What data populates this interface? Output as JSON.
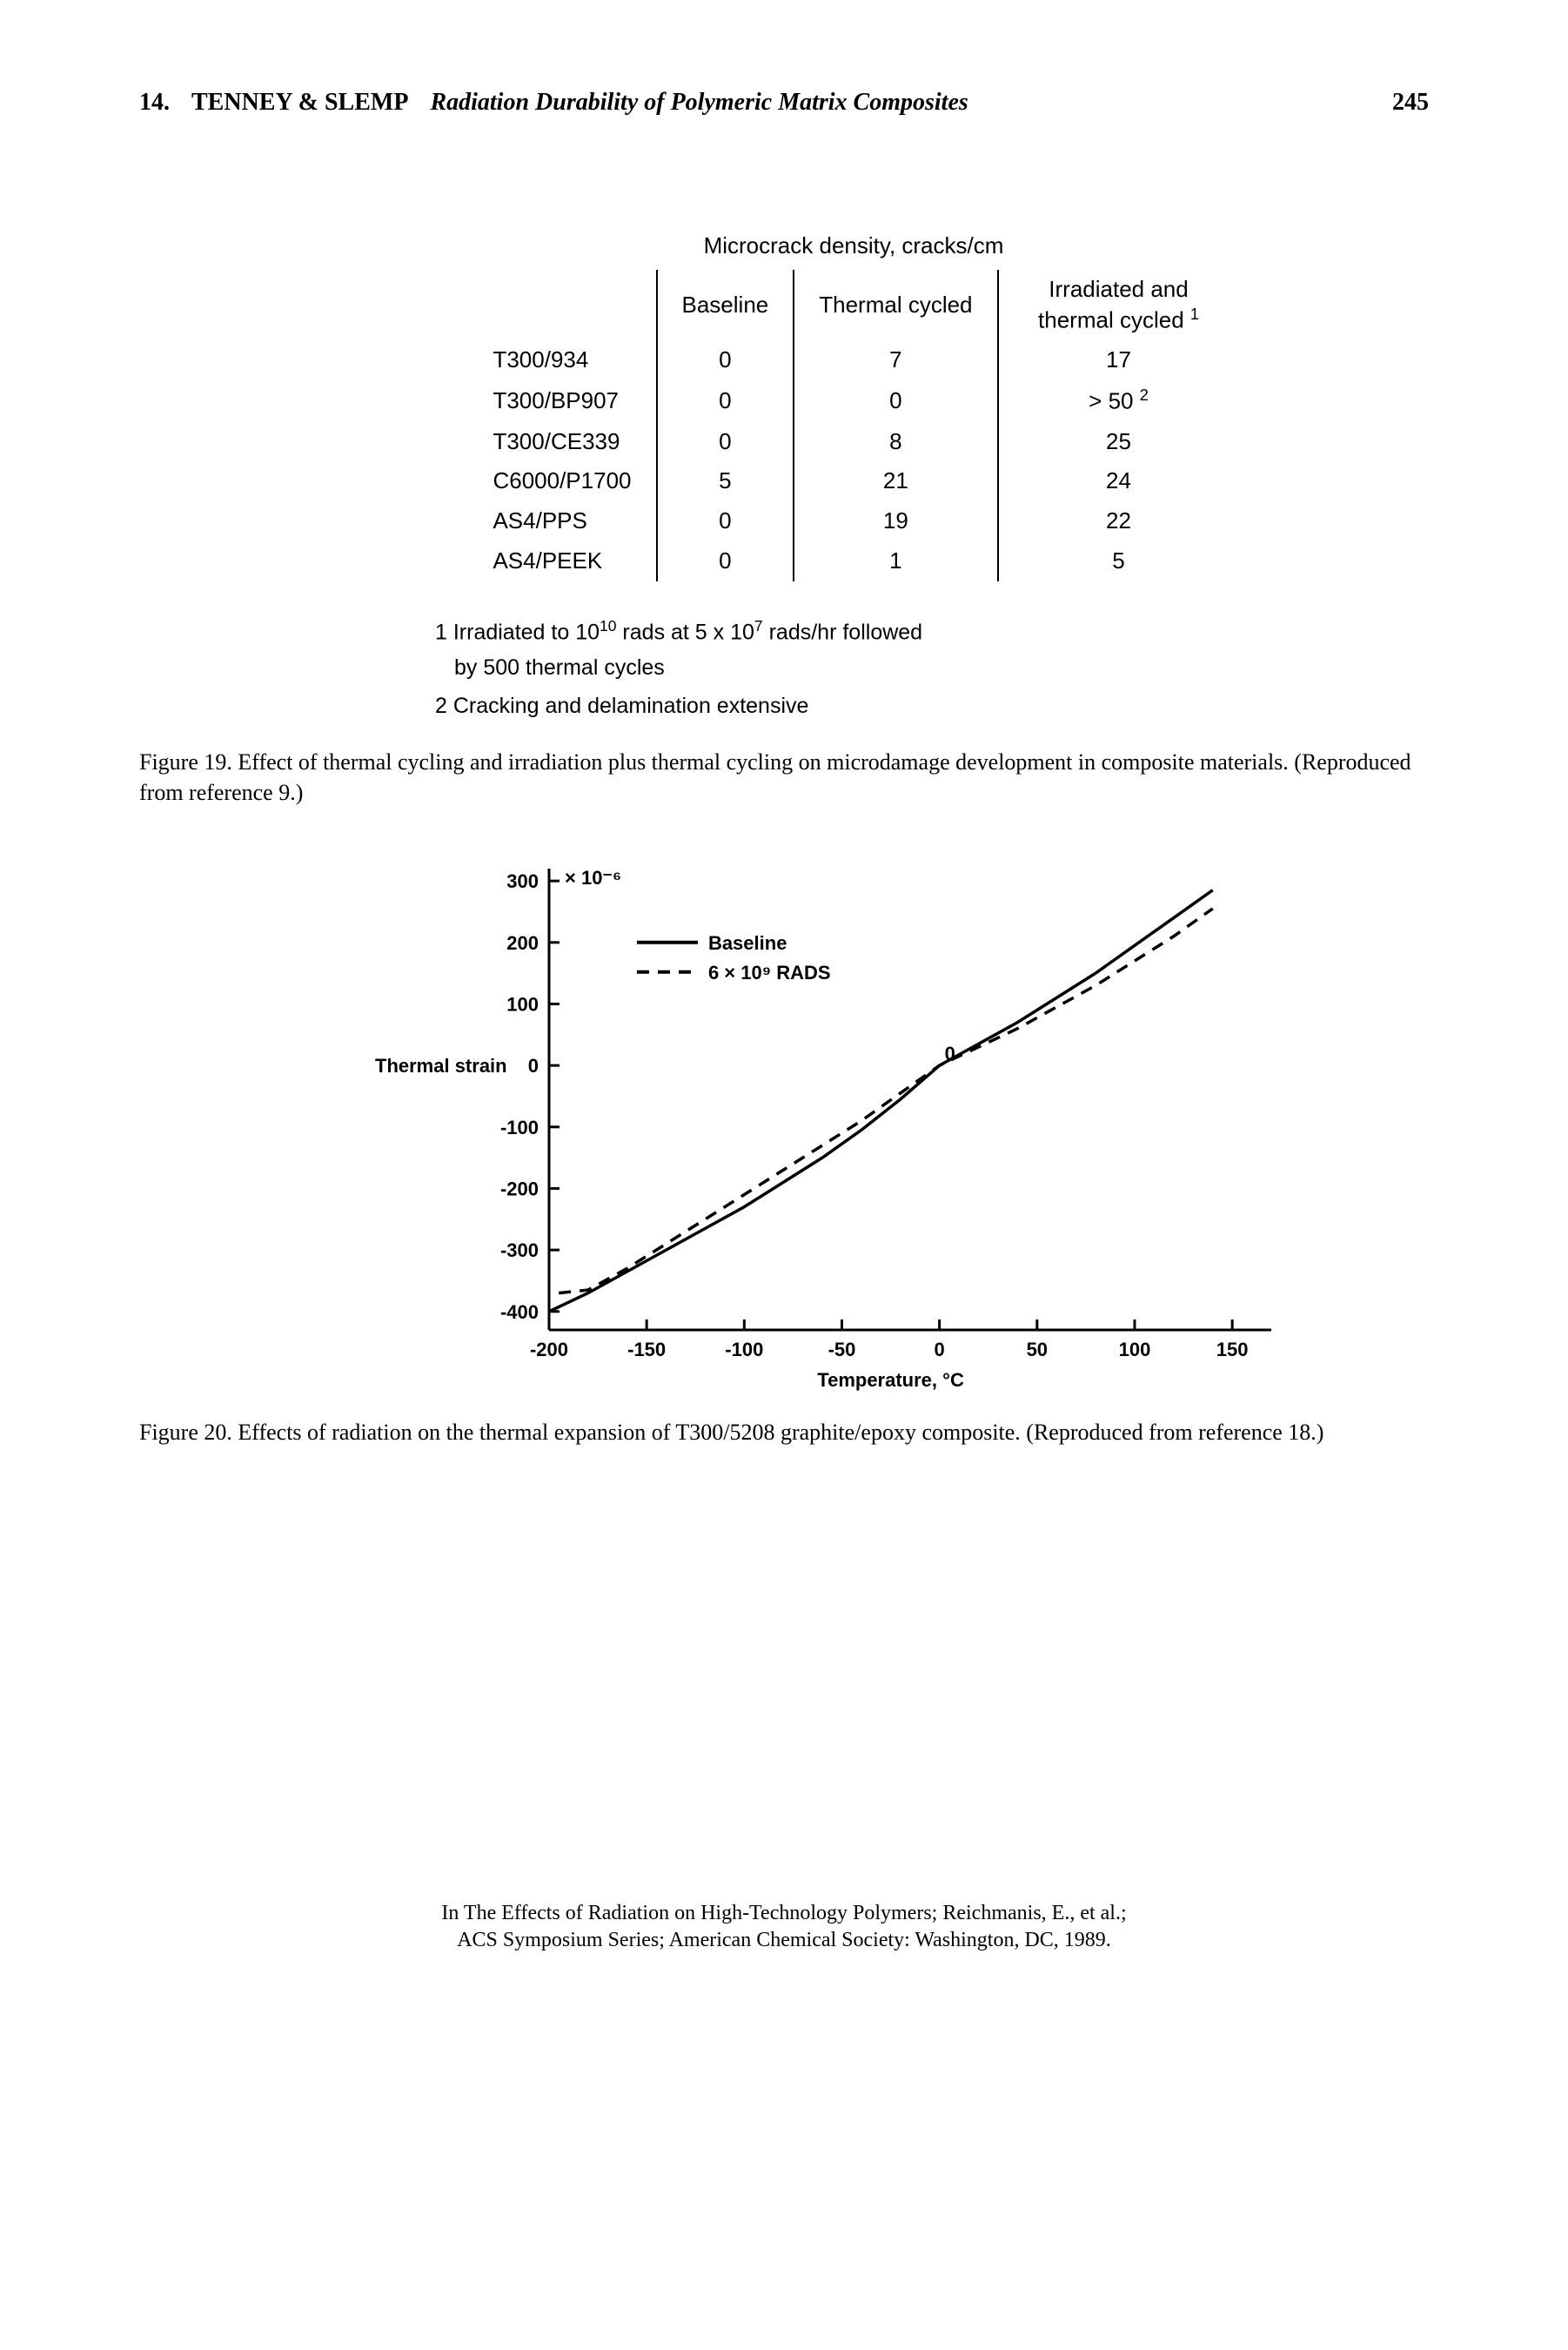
{
  "header": {
    "chapter_num": "14.",
    "authors": "TENNEY & SLEMP",
    "title": "Radiation Durability of Polymeric Matrix Composites",
    "page": "245"
  },
  "table": {
    "title": "Microcrack density, cracks/cm",
    "columns": [
      "",
      "Baseline",
      "Thermal cycled",
      "Irradiated and thermal cycled"
    ],
    "col3_super": "1",
    "rows": [
      {
        "material": "T300/934",
        "baseline": "0",
        "thermal": "7",
        "irradiated": "17",
        "sup": ""
      },
      {
        "material": "T300/BP907",
        "baseline": "0",
        "thermal": "0",
        "irradiated": "> 50",
        "sup": "2"
      },
      {
        "material": "T300/CE339",
        "baseline": "0",
        "thermal": "8",
        "irradiated": "25",
        "sup": ""
      },
      {
        "material": "C6000/P1700",
        "baseline": "5",
        "thermal": "21",
        "irradiated": "24",
        "sup": ""
      },
      {
        "material": "AS4/PPS",
        "baseline": "0",
        "thermal": "19",
        "irradiated": "22",
        "sup": ""
      },
      {
        "material": "AS4/PEEK",
        "baseline": "0",
        "thermal": "1",
        "irradiated": "5",
        "sup": ""
      }
    ],
    "footnote1_prefix": "1 Irradiated to 10",
    "footnote1_sup1": "10",
    "footnote1_mid": " rads at 5 x 10",
    "footnote1_sup2": "7",
    "footnote1_suffix": " rads/hr followed",
    "footnote1_line2": "by 500 thermal cycles",
    "footnote2": "2 Cracking and delamination extensive"
  },
  "caption19": "Figure 19. Effect of thermal cycling and irradiation plus thermal cycling on microdamage development in composite materials. (Reproduced from reference 9.)",
  "chart": {
    "type": "line",
    "y_label": "Thermal strain",
    "y_exponent": "× 10⁻⁶",
    "x_label": "Temperature, °C",
    "x_ticks": [
      "-200",
      "-150",
      "-100",
      "-50",
      "0",
      "50",
      "100",
      "150"
    ],
    "y_ticks": [
      "-400",
      "-300",
      "-200",
      "-100",
      "0",
      "100",
      "200",
      "300"
    ],
    "xlim": [
      -200,
      170
    ],
    "ylim": [
      -430,
      320
    ],
    "legend": {
      "items": [
        {
          "label": "Baseline",
          "dash": "solid"
        },
        {
          "label": "6 × 10⁹ RADS",
          "dash": "dashed"
        }
      ]
    },
    "series": {
      "baseline": [
        {
          "x": -200,
          "y": -400
        },
        {
          "x": -180,
          "y": -370
        },
        {
          "x": -160,
          "y": -335
        },
        {
          "x": -140,
          "y": -300
        },
        {
          "x": -120,
          "y": -265
        },
        {
          "x": -100,
          "y": -230
        },
        {
          "x": -80,
          "y": -190
        },
        {
          "x": -60,
          "y": -150
        },
        {
          "x": -40,
          "y": -105
        },
        {
          "x": -20,
          "y": -55
        },
        {
          "x": 0,
          "y": 0
        },
        {
          "x": 20,
          "y": 35
        },
        {
          "x": 40,
          "y": 70
        },
        {
          "x": 60,
          "y": 110
        },
        {
          "x": 80,
          "y": 150
        },
        {
          "x": 100,
          "y": 195
        },
        {
          "x": 120,
          "y": 240
        },
        {
          "x": 140,
          "y": 285
        }
      ],
      "rads": [
        {
          "x": -195,
          "y": -370
        },
        {
          "x": -180,
          "y": -365
        },
        {
          "x": -160,
          "y": -330
        },
        {
          "x": -140,
          "y": -290
        },
        {
          "x": -120,
          "y": -250
        },
        {
          "x": -100,
          "y": -210
        },
        {
          "x": -80,
          "y": -170
        },
        {
          "x": -60,
          "y": -130
        },
        {
          "x": -40,
          "y": -90
        },
        {
          "x": -20,
          "y": -45
        },
        {
          "x": 0,
          "y": 0
        },
        {
          "x": 20,
          "y": 30
        },
        {
          "x": 40,
          "y": 60
        },
        {
          "x": 60,
          "y": 95
        },
        {
          "x": 80,
          "y": 130
        },
        {
          "x": 100,
          "y": 170
        },
        {
          "x": 120,
          "y": 210
        },
        {
          "x": 140,
          "y": 255
        }
      ]
    },
    "colors": {
      "axis": "#000000",
      "baseline": "#000000",
      "rads": "#000000",
      "background": "#ffffff"
    },
    "line_width": 3.5,
    "font_size": 22,
    "font_weight": "bold"
  },
  "caption20": "Figure 20. Effects of radiation on the thermal expansion of T300/5208 graphite/epoxy composite. (Reproduced from reference 18.)",
  "footer": {
    "line1": "In The Effects of Radiation on High-Technology Polymers; Reichmanis, E., et al.;",
    "line2": "ACS Symposium Series; American Chemical Society: Washington, DC, 1989."
  }
}
